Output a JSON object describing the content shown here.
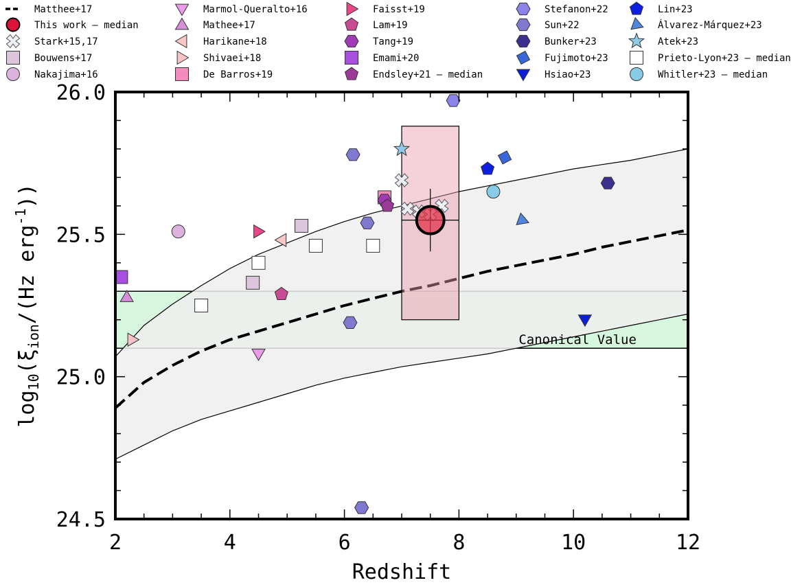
{
  "chart_data": {
    "type": "scatter",
    "xlabel": "Redshift",
    "ylabel_parts": {
      "a": "log",
      "b": "10",
      "c": "(ξ",
      "d": "ion",
      "e": "/(Hz erg",
      "f": "-1",
      "g": "))"
    },
    "xlim": [
      2,
      12
    ],
    "ylim": [
      24.5,
      26.0
    ],
    "xticks": [
      2,
      4,
      6,
      8,
      10,
      12
    ],
    "yticks": [
      24.5,
      25.0,
      25.5,
      26.0
    ],
    "xtick_labels": [
      "2",
      "4",
      "6",
      "8",
      "10",
      "12"
    ],
    "ytick_labels": [
      "24.5",
      "25.0",
      "25.5",
      "26.0"
    ],
    "grid": false,
    "legend_position": "top",
    "canonical_band": {
      "label": "Canonical Value",
      "ymin": 25.1,
      "ymax": 25.3,
      "color": "#d6f6dd"
    },
    "model_curve": {
      "name": "Matthee+17",
      "x": [
        2,
        2.5,
        3,
        3.5,
        4,
        4.5,
        5,
        5.5,
        6,
        6.5,
        7,
        7.5,
        8,
        8.5,
        9,
        9.5,
        10,
        10.5,
        11,
        11.5,
        12
      ],
      "median": [
        24.89,
        24.98,
        25.04,
        25.09,
        25.13,
        25.16,
        25.19,
        25.22,
        25.25,
        25.275,
        25.3,
        25.32,
        25.345,
        25.37,
        25.39,
        25.41,
        25.43,
        25.455,
        25.475,
        25.495,
        25.515
      ],
      "upper": [
        25.07,
        25.18,
        25.255,
        25.32,
        25.38,
        25.43,
        25.47,
        25.51,
        25.545,
        25.575,
        25.6,
        25.625,
        25.65,
        25.67,
        25.69,
        25.71,
        25.73,
        25.745,
        25.76,
        25.78,
        25.8
      ],
      "lower": [
        24.71,
        24.76,
        24.81,
        24.85,
        24.88,
        24.91,
        24.94,
        24.97,
        24.995,
        25.015,
        25.035,
        25.05,
        25.065,
        25.08,
        25.1,
        25.12,
        25.14,
        25.16,
        25.18,
        25.2,
        25.22
      ],
      "band_color": "#efefef"
    },
    "this_work": {
      "name": "This work – median",
      "x": 7.5,
      "y": 25.55,
      "x_range": [
        7,
        8
      ],
      "y_range": [
        25.2,
        25.88
      ],
      "yerr": [
        25.44,
        25.66
      ],
      "color": "#e0344a",
      "box_color": "#e89aab"
    },
    "series": [
      {
        "name": "Stark+15,17",
        "marker": "cross",
        "color": "#eceff8",
        "points": [
          [
            7.0,
            25.69
          ],
          [
            7.1,
            25.59
          ],
          [
            7.3,
            25.58
          ],
          [
            7.5,
            25.57
          ],
          [
            7.7,
            25.6
          ]
        ]
      },
      {
        "name": "Bouwens+17",
        "marker": "square",
        "color": "#dcc6dc",
        "points": [
          [
            4.4,
            25.33
          ],
          [
            5.25,
            25.53
          ]
        ]
      },
      {
        "name": "Nakajima+16",
        "marker": "circle",
        "color": "#ddb3dd",
        "points": [
          [
            3.1,
            25.51
          ]
        ]
      },
      {
        "name": "Marmol-Queralto+16",
        "marker": "tri-down",
        "color": "#ec9aec",
        "points": [
          [
            4.5,
            25.08
          ]
        ]
      },
      {
        "name": "Mathee+17",
        "marker": "tri-up",
        "color": "#d68ed6",
        "points": [
          [
            2.2,
            25.28
          ]
        ]
      },
      {
        "name": "Harikane+18",
        "marker": "tri-left",
        "color": "#f7c6c6",
        "points": [
          [
            4.9,
            25.48
          ]
        ]
      },
      {
        "name": "Shivaei+18",
        "marker": "tri-right",
        "color": "#f8c2c6",
        "points": [
          [
            2.3,
            25.13
          ]
        ]
      },
      {
        "name": "De Barros+19",
        "marker": "square",
        "color": "#f48bbd",
        "points": [
          [
            6.7,
            25.63
          ]
        ]
      },
      {
        "name": "Faisst+19",
        "marker": "tri-right",
        "color": "#ea4788",
        "points": [
          [
            4.5,
            25.51
          ]
        ]
      },
      {
        "name": "Lam+19",
        "marker": "pentagon",
        "color": "#c94b95",
        "points": [
          [
            4.9,
            25.29
          ]
        ]
      },
      {
        "name": "Tang+19",
        "marker": "hexagon",
        "color": "#a13ab5",
        "points": [
          [
            6.7,
            25.62
          ]
        ]
      },
      {
        "name": "Emami+20",
        "marker": "square",
        "color": "#a64fe0",
        "points": [
          [
            2.1,
            25.35
          ]
        ]
      },
      {
        "name": "Endsley+21 – median",
        "marker": "pentagon",
        "color": "#9b3b96",
        "points": [
          [
            6.75,
            25.6
          ]
        ]
      },
      {
        "name": "Stefanon+22",
        "marker": "hexagon",
        "color": "#8a83e8",
        "points": [
          [
            7.9,
            25.97
          ]
        ]
      },
      {
        "name": "Sun+22",
        "marker": "hexagon",
        "color": "#8079d0",
        "points": [
          [
            6.15,
            25.78
          ],
          [
            6.4,
            25.54
          ],
          [
            6.1,
            25.19
          ],
          [
            6.3,
            24.54
          ]
        ]
      },
      {
        "name": "Bunker+23",
        "marker": "hexagon",
        "color": "#3b2f8f",
        "points": [
          [
            10.6,
            25.68
          ]
        ]
      },
      {
        "name": "Fujimoto+23",
        "marker": "diamond",
        "color": "#3a67d8",
        "points": [
          [
            8.8,
            25.77
          ]
        ]
      },
      {
        "name": "Hsiao+23",
        "marker": "tri-down",
        "color": "#0b1fd6",
        "points": [
          [
            10.2,
            25.2
          ]
        ]
      },
      {
        "name": "Lin+23",
        "marker": "pentagon",
        "color": "#0e1ee0",
        "points": [
          [
            8.5,
            25.73
          ]
        ]
      },
      {
        "name": "Álvarez-Márquez+23",
        "marker": "tri-wedge",
        "color": "#4f86e0",
        "points": [
          [
            9.1,
            25.55
          ]
        ]
      },
      {
        "name": "Atek+23",
        "marker": "star",
        "color": "#8fcbe6",
        "points": [
          [
            7.0,
            25.8
          ]
        ]
      },
      {
        "name": "Prieto-Lyon+23 – median",
        "marker": "square",
        "color": "#ffffff",
        "points": [
          [
            3.5,
            25.25
          ],
          [
            4.5,
            25.4
          ],
          [
            5.5,
            25.46
          ],
          [
            6.5,
            25.46
          ]
        ]
      },
      {
        "name": "Whitler+23 – median",
        "marker": "circle",
        "color": "#87cbe6",
        "points": [
          [
            8.6,
            25.65
          ]
        ]
      }
    ],
    "legend_columns": [
      [
        "Matthee+17",
        "This work – median",
        "Stark+15,17",
        "Bouwens+17",
        "Nakajima+16"
      ],
      [
        "Marmol-Queralto+16",
        "Mathee+17",
        "Harikane+18",
        "Shivaei+18",
        "De Barros+19"
      ],
      [
        "Faisst+19",
        "Lam+19",
        "Tang+19",
        "Emami+20",
        "Endsley+21 – median"
      ],
      [
        "Stefanon+22",
        "Sun+22",
        "Bunker+23",
        "Fujimoto+23",
        "Hsiao+23"
      ],
      [
        "Lin+23",
        "Álvarez-Márquez+23",
        "Atek+23",
        "Prieto-Lyon+23 – median",
        "Whitler+23 – median"
      ]
    ]
  }
}
